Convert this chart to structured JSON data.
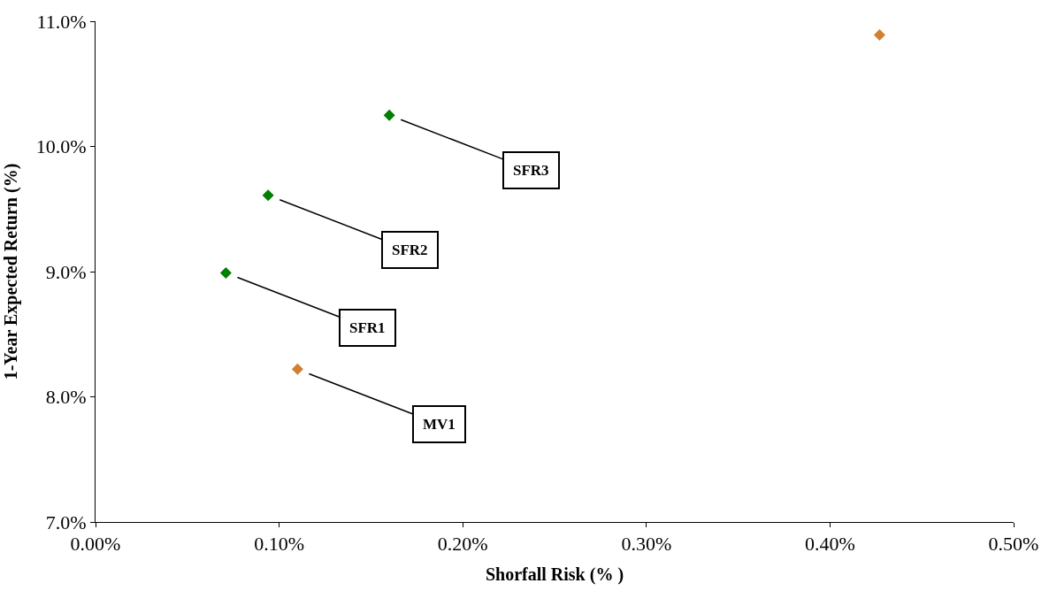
{
  "chart_data": {
    "type": "scatter",
    "xlabel": "Shorfall Risk (% )",
    "ylabel": "1-Year Expected Return (%)",
    "marker": "diamond",
    "xlim": [
      0,
      0.5
    ],
    "ylim": [
      7.0,
      11.0
    ],
    "xticks": [
      {
        "value": 0,
        "label": "0.00%"
      },
      {
        "value": 0.1,
        "label": "0.10%"
      },
      {
        "value": 0.2,
        "label": "0.20%"
      },
      {
        "value": 0.3,
        "label": "0.30%"
      },
      {
        "value": 0.4,
        "label": "0.40%"
      },
      {
        "value": 0.5,
        "label": "0.50%"
      }
    ],
    "yticks": [
      {
        "value": 7,
        "label": "7.0%"
      },
      {
        "value": 8,
        "label": "8.0%"
      },
      {
        "value": 9,
        "label": "9.0%"
      },
      {
        "value": 10,
        "label": "10.0%"
      },
      {
        "value": 11,
        "label": "11.0%"
      }
    ],
    "series": [
      {
        "color": "#008000",
        "x": [
          0.071,
          0.094,
          0.16
        ],
        "values": [
          8.99,
          9.61,
          10.25
        ]
      },
      {
        "color": "#d08030",
        "x": [
          0.11,
          0.427
        ],
        "values": [
          8.22,
          10.89
        ]
      }
    ],
    "annotations": [
      {
        "text": "SFR1",
        "x": 0.071,
        "y": 8.99
      },
      {
        "text": "SFR2",
        "x": 0.094,
        "y": 9.61
      },
      {
        "text": "SFR3",
        "x": 0.16,
        "y": 10.25
      },
      {
        "text": "MV1",
        "x": 0.11,
        "y": 8.22
      }
    ]
  }
}
